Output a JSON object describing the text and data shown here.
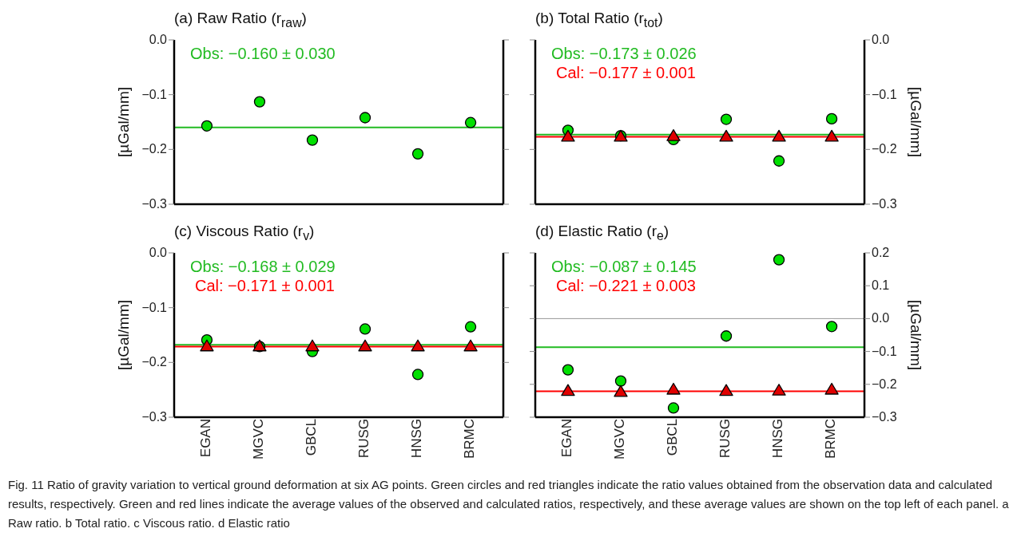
{
  "chart_data": [
    {
      "type": "scatter",
      "title": "(a) Raw Ratio (r$_{raw}$)",
      "ylabel": "[µGal/mm]",
      "categories": [
        null,
        null,
        null,
        null,
        null,
        null
      ],
      "series": [
        {
          "color": "#00e000",
          "marker": "circle",
          "values": [
            -0.157,
            -0.113,
            -0.183,
            -0.142,
            -0.208,
            -0.151
          ]
        }
      ],
      "ylim": [
        -0.3,
        0.0
      ],
      "yticks": [
        {
          "value": -0.3,
          "label": "−0.3"
        },
        {
          "value": -0.2,
          "label": "−0.2"
        },
        {
          "value": -0.1,
          "label": "−0.1"
        },
        {
          "value": 0.0,
          "label": "0.0"
        }
      ],
      "ref_lines": [
        {
          "axis": "y",
          "value": -0.16,
          "color": "#22bb22"
        }
      ],
      "annotations": [
        "Obs: −0.160 ± 0.030"
      ],
      "tick_labels": [
        "y"
      ],
      "grid": false,
      "legend": false
    },
    {
      "type": "scatter",
      "title": "(b) Total Ratio (r$_{tot}$)",
      "y2label": "[µGal/mm]",
      "categories": [
        null,
        null,
        null,
        null,
        null,
        null
      ],
      "series": [
        {
          "axis": "y2",
          "color": "#00e000",
          "marker": "circle",
          "values": [
            -0.165,
            -0.175,
            -0.182,
            -0.145,
            -0.221,
            -0.144
          ]
        },
        {
          "axis": "y2",
          "color": "#e00000",
          "marker": "triangle",
          "values": [
            -0.176,
            -0.176,
            -0.175,
            -0.176,
            -0.176,
            -0.176
          ]
        }
      ],
      "y2lim": [
        -0.3,
        0.0
      ],
      "y2ticks": [
        {
          "value": -0.3,
          "label": "−0.3"
        },
        {
          "value": -0.2,
          "label": "−0.2"
        },
        {
          "value": -0.1,
          "label": "−0.1"
        },
        {
          "value": 0.0,
          "label": "0.0"
        }
      ],
      "ref_lines": [
        {
          "axis": "y2",
          "value": -0.173,
          "color": "#22bb22"
        },
        {
          "axis": "y2",
          "value": -0.177,
          "color": "#ff0000"
        }
      ],
      "annotations": [
        "Obs: −0.173 ± 0.026",
        "Cal: −0.177 ± 0.001"
      ],
      "tick_labels": [
        "y2"
      ],
      "grid": false,
      "legend": false
    },
    {
      "type": "scatter",
      "title": "(c) Viscous Ratio (r$_{v}$)",
      "ylabel": "[µGal/mm]",
      "categories": [
        "EGAN",
        "MGVC",
        "GBCL",
        "RUSG",
        "HNSG",
        "BRMC"
      ],
      "series": [
        {
          "color": "#00e000",
          "marker": "circle",
          "values": [
            -0.159,
            -0.171,
            -0.18,
            -0.139,
            -0.222,
            -0.135
          ]
        },
        {
          "color": "#e00000",
          "marker": "triangle",
          "values": [
            -0.17,
            -0.17,
            -0.17,
            -0.17,
            -0.17,
            -0.17
          ]
        }
      ],
      "ylim": [
        -0.3,
        0.0
      ],
      "yticks": [
        {
          "value": -0.3,
          "label": "−0.3"
        },
        {
          "value": -0.2,
          "label": "−0.2"
        },
        {
          "value": -0.1,
          "label": "−0.1"
        },
        {
          "value": 0.0,
          "label": "0.0"
        }
      ],
      "ref_lines": [
        {
          "axis": "y",
          "value": -0.168,
          "color": "#22bb22"
        },
        {
          "axis": "y",
          "value": -0.171,
          "color": "#ff0000"
        }
      ],
      "annotations": [
        "Obs: −0.168 ± 0.029",
        "Cal: −0.171 ± 0.001"
      ],
      "tick_labels": [
        "x",
        "y"
      ],
      "grid": false,
      "legend": false
    },
    {
      "type": "scatter",
      "title": "(d) Elastic Ratio (r$_{e}$)",
      "y2label": "[µGal/mm]",
      "categories": [
        "EGAN",
        "MGVC",
        "GBCL",
        "RUSG",
        "HNSG",
        "BRMC"
      ],
      "series": [
        {
          "axis": "y2",
          "color": "#00e000",
          "marker": "circle",
          "values": [
            -0.156,
            -0.19,
            -0.272,
            -0.053,
            0.179,
            -0.024
          ]
        },
        {
          "axis": "y2",
          "color": "#e00000",
          "marker": "triangle",
          "values": [
            -0.219,
            -0.222,
            -0.215,
            -0.219,
            -0.218,
            -0.215
          ]
        }
      ],
      "y2lim": [
        -0.3,
        0.2
      ],
      "y2ticks": [
        {
          "value": -0.3,
          "label": "−0.3"
        },
        {
          "value": -0.2,
          "label": "−0.2"
        },
        {
          "value": -0.1,
          "label": "−0.1"
        },
        {
          "value": 0.0,
          "label": "0.0"
        },
        {
          "value": 0.1,
          "label": "0.1"
        },
        {
          "value": 0.2,
          "label": "0.2"
        }
      ],
      "ref_lines": [
        {
          "axis": "y2",
          "value": -0.087,
          "color": "#22bb22"
        },
        {
          "axis": "y2",
          "value": -0.221,
          "color": "#ff0000"
        },
        {
          "axis": "y2",
          "value": 0.0,
          "color": "#999999"
        }
      ],
      "annotations": [
        "Obs: −0.087 ± 0.145",
        "Cal: −0.221 ± 0.003",
        "Fig. 11  Ratio of gravity variation to vertical ground deformation at six AG points. Green circles and red triangles indicate the ratio values obtained from the observation data and calculated results, respectively. Green and red lines indicate the average values of the observed and calculated ratios, respectively, and these average values are shown on the top left of each panel. a Raw ratio. b Total ratio. c Viscous ratio. d Elastic ratio"
      ],
      "tick_labels": [
        "x",
        "y2"
      ],
      "grid": false,
      "legend": false
    }
  ]
}
